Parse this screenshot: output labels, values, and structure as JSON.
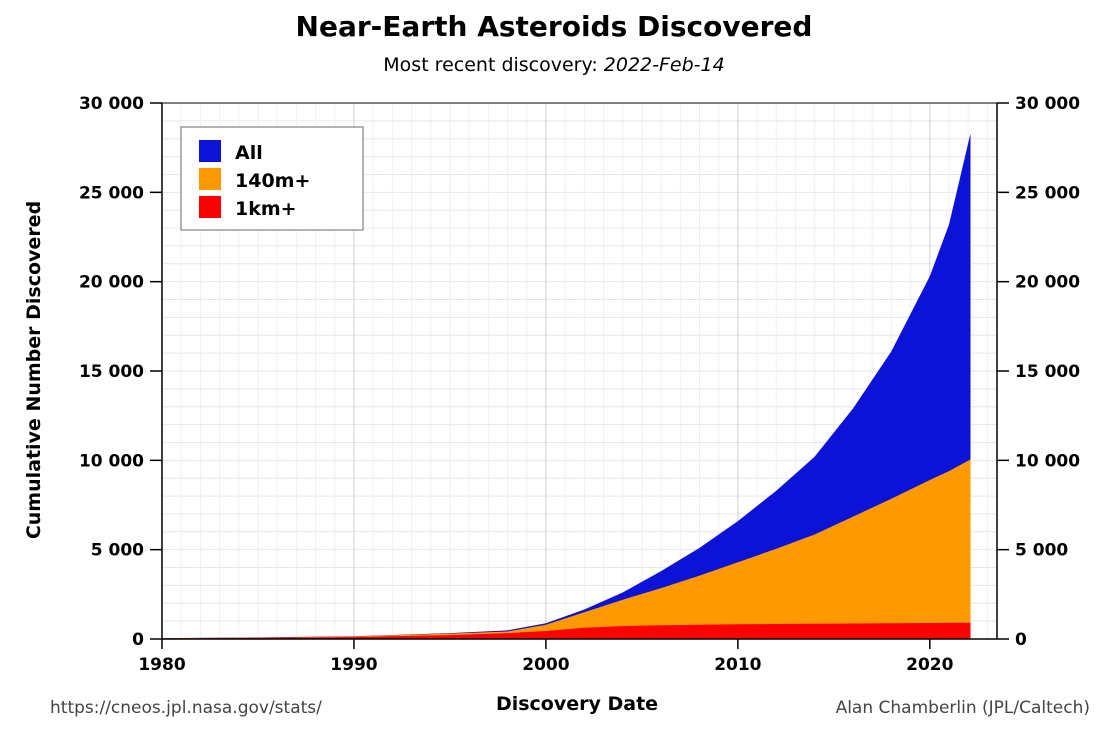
{
  "header": {
    "title": "Near-Earth Asteroids Discovered",
    "subtitle_prefix": "Most recent discovery: ",
    "subtitle_date": "2022-Feb-14"
  },
  "footer": {
    "source_url": "https://cneos.jpl.nasa.gov/stats/",
    "credit": "Alan Chamberlin (JPL/Caltech)"
  },
  "colors": {
    "all": "#0c12d6",
    "m140": "#ff9900",
    "km1": "#ff0000",
    "grid": "#e6e6e6",
    "axis": "#000000"
  },
  "chart_data": {
    "type": "area",
    "title": "Near-Earth Asteroids Discovered",
    "xlabel": "Discovery Date",
    "ylabel": "Cumulative Number Discovered",
    "xlim": [
      1980,
      2023.5
    ],
    "ylim": [
      0,
      30000
    ],
    "x_ticks": [
      1980,
      1990,
      2000,
      2010,
      2020
    ],
    "y_ticks": [
      0,
      5000,
      10000,
      15000,
      20000,
      25000,
      30000
    ],
    "y_tick_labels": [
      "0",
      "5 000",
      "10 000",
      "15 000",
      "20 000",
      "25 000",
      "30 000"
    ],
    "grid": true,
    "legend_position": "top-left",
    "x": [
      1980,
      1985,
      1990,
      1995,
      1998,
      2000,
      2002,
      2004,
      2006,
      2008,
      2010,
      2012,
      2014,
      2016,
      2018,
      2020,
      2021,
      2022.12
    ],
    "series": [
      {
        "name": "All",
        "color_key": "all",
        "values": [
          50,
          90,
          150,
          330,
          480,
          880,
          1650,
          2600,
          3800,
          5100,
          6600,
          8300,
          10200,
          12900,
          16100,
          20300,
          23200,
          28300
        ]
      },
      {
        "name": "140m+",
        "color_key": "m140",
        "values": [
          40,
          80,
          140,
          300,
          420,
          800,
          1500,
          2200,
          2850,
          3550,
          4300,
          5050,
          5850,
          6850,
          7850,
          8900,
          9400,
          10050
        ]
      },
      {
        "name": "1km+",
        "color_key": "km1",
        "values": [
          30,
          60,
          110,
          220,
          330,
          450,
          630,
          720,
          770,
          800,
          820,
          840,
          855,
          870,
          885,
          895,
          900,
          910
        ]
      }
    ]
  }
}
